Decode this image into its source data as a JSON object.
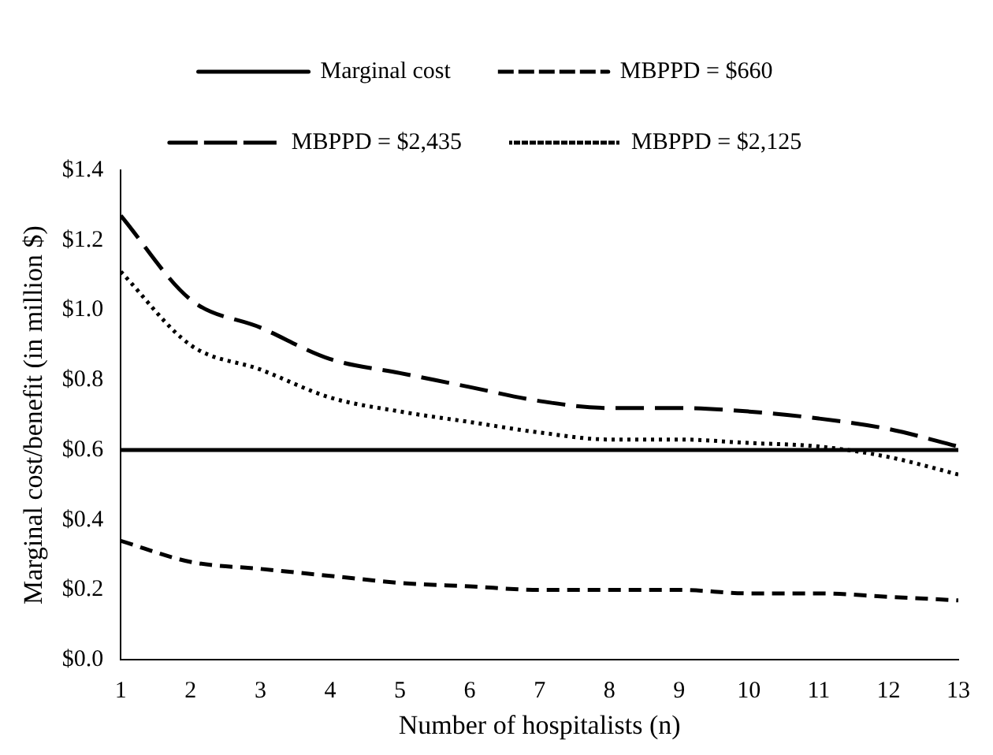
{
  "chart_data": {
    "type": "line",
    "xlabel": "Number of hospitalists (n)",
    "ylabel": "Marginal cost/benefit (in million $)",
    "x": [
      1,
      2,
      3,
      4,
      5,
      6,
      7,
      8,
      9,
      10,
      11,
      12,
      13
    ],
    "xlim": [
      1,
      13
    ],
    "xticks": [
      1,
      2,
      3,
      4,
      5,
      6,
      7,
      8,
      9,
      10,
      11,
      12,
      13
    ],
    "ylim": [
      0,
      1.4
    ],
    "yticks": [
      {
        "value": 0,
        "label": "$0.0"
      },
      {
        "value": 0.2,
        "label": "$0.2"
      },
      {
        "value": 0.4,
        "label": "$0.4"
      },
      {
        "value": 0.6,
        "label": "$0.6"
      },
      {
        "value": 0.8,
        "label": "$0.8"
      },
      {
        "value": 1.0,
        "label": "$1.0"
      },
      {
        "value": 1.2,
        "label": "$1.2"
      },
      {
        "value": 1.4,
        "label": "$1.4"
      }
    ],
    "grid": false,
    "legend": "top",
    "marker": "none",
    "series": [
      {
        "name": "Marginal cost",
        "color": "#000000",
        "line_style": "solid",
        "values": [
          0.6,
          0.6,
          0.6,
          0.6,
          0.6,
          0.6,
          0.6,
          0.6,
          0.6,
          0.6,
          0.6,
          0.6,
          0.6
        ]
      },
      {
        "name": "MBPPD = $660",
        "color": "#000000",
        "line_style": "dashed",
        "values": [
          0.34,
          0.28,
          0.26,
          0.24,
          0.22,
          0.21,
          0.2,
          0.2,
          0.2,
          0.19,
          0.19,
          0.18,
          0.17
        ]
      },
      {
        "name": "MBPPD = $2,435",
        "color": "#000000",
        "line_style": "longdash",
        "values": [
          1.27,
          1.03,
          0.95,
          0.86,
          0.82,
          0.78,
          0.74,
          0.72,
          0.72,
          0.71,
          0.69,
          0.66,
          0.61
        ]
      },
      {
        "name": "MBPPD = $2,125",
        "color": "#000000",
        "line_style": "dotted",
        "values": [
          1.11,
          0.9,
          0.83,
          0.75,
          0.71,
          0.68,
          0.65,
          0.63,
          0.63,
          0.62,
          0.61,
          0.58,
          0.53
        ]
      }
    ]
  }
}
